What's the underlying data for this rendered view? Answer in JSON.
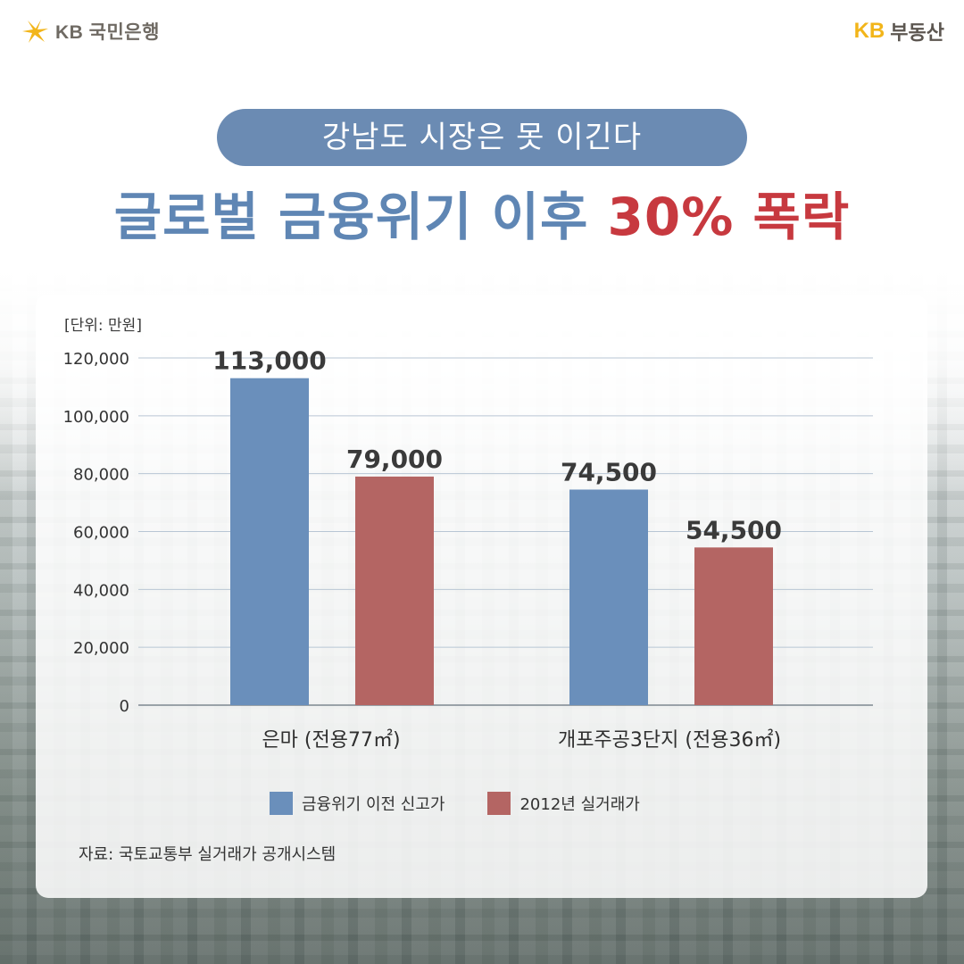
{
  "header": {
    "left_brand": "KB 국민은행",
    "right_brand_kb": "KB",
    "right_brand_text": "부동산"
  },
  "title": {
    "subtitle": "강남도 시장은 못 이긴다",
    "main_part1": "글로벌 금융위기 이후 ",
    "main_highlight": "30% 폭락"
  },
  "colors": {
    "accent_blue": "#6b8bb3",
    "series_blue": "#6a8fbb",
    "series_red": "#b46563",
    "highlight_red": "#c7393f",
    "kb_yellow": "#f2b51a"
  },
  "icons": {
    "left_logo": "kb-star-logo-icon"
  },
  "chart_data": {
    "type": "bar",
    "unit_label": "[단위: 만원]",
    "categories": [
      "은마 (전용77㎡)",
      "개포주공3단지 (전용36㎡)"
    ],
    "series": [
      {
        "name": "금융위기 이전 신고가",
        "values": [
          113000,
          74500
        ],
        "labels": [
          "113,000",
          "74,500"
        ]
      },
      {
        "name": "2012년 실거래가",
        "values": [
          79000,
          54500
        ],
        "labels": [
          "79,000",
          "54,500"
        ]
      }
    ],
    "ylim": [
      0,
      120000
    ],
    "yticks": [
      0,
      20000,
      40000,
      60000,
      80000,
      100000,
      120000
    ],
    "ytick_labels": [
      "0",
      "20,000",
      "40,000",
      "60,000",
      "80,000",
      "100,000",
      "120,000"
    ],
    "grid": true,
    "legend_position": "bottom"
  },
  "source": "자료: 국토교통부 실거래가 공개시스템"
}
